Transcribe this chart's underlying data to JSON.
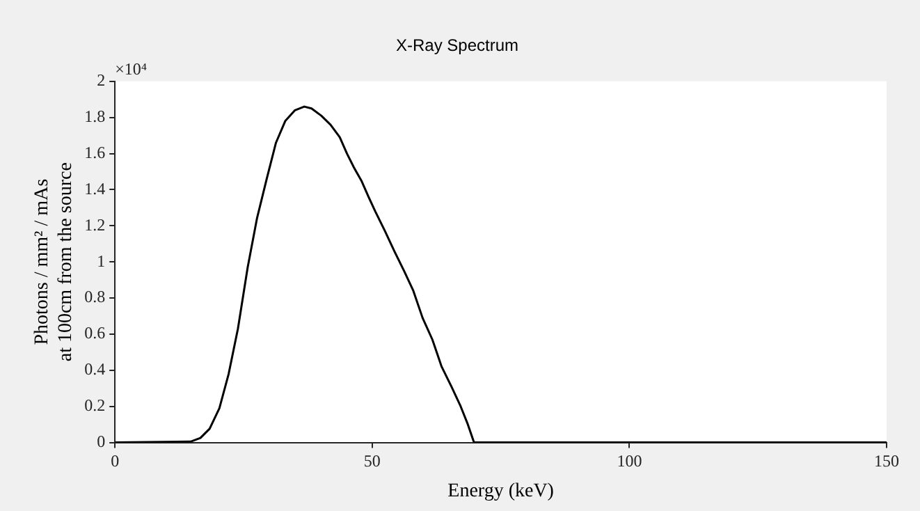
{
  "chart_data": {
    "type": "line",
    "title": "X-Ray Spectrum",
    "xlabel": "Energy (keV)",
    "ylabel": "Photons / mm² / mAs\nat 100cm from the source",
    "annotations": [
      "×10⁴"
    ],
    "series": [
      {
        "color": "#000000",
        "x": [
          0,
          14.7,
          16.6,
          18.4,
          20.3,
          22.1,
          23.9,
          25.8,
          27.6,
          29.5,
          31.3,
          33.1,
          35.0,
          36.8,
          38.2,
          40.1,
          41.9,
          43.7,
          45.1,
          46.5,
          47.9,
          49.3,
          50.6,
          52.5,
          54.3,
          56.2,
          58.0,
          59.8,
          61.7,
          63.5,
          65.4,
          67.2,
          68.6,
          69.8,
          150
        ],
        "values": [
          0,
          0.005,
          0.025,
          0.076,
          0.19,
          0.38,
          0.63,
          0.97,
          1.24,
          1.46,
          1.66,
          1.78,
          1.84,
          1.86,
          1.85,
          1.81,
          1.76,
          1.69,
          1.6,
          1.52,
          1.45,
          1.36,
          1.28,
          1.17,
          1.06,
          0.95,
          0.84,
          0.69,
          0.57,
          0.42,
          0.31,
          0.2,
          0.1,
          0,
          0
        ]
      }
    ],
    "xlim": [
      0,
      150
    ],
    "xticks": [
      0,
      50,
      100,
      150
    ],
    "ylim": [
      0,
      2
    ],
    "yticks": [
      0,
      0.2,
      0.4,
      0.6,
      0.8,
      1,
      1.2,
      1.4,
      1.6,
      1.8,
      2
    ],
    "grid": false,
    "legend": false,
    "marker": "none",
    "line_style": "solid"
  }
}
